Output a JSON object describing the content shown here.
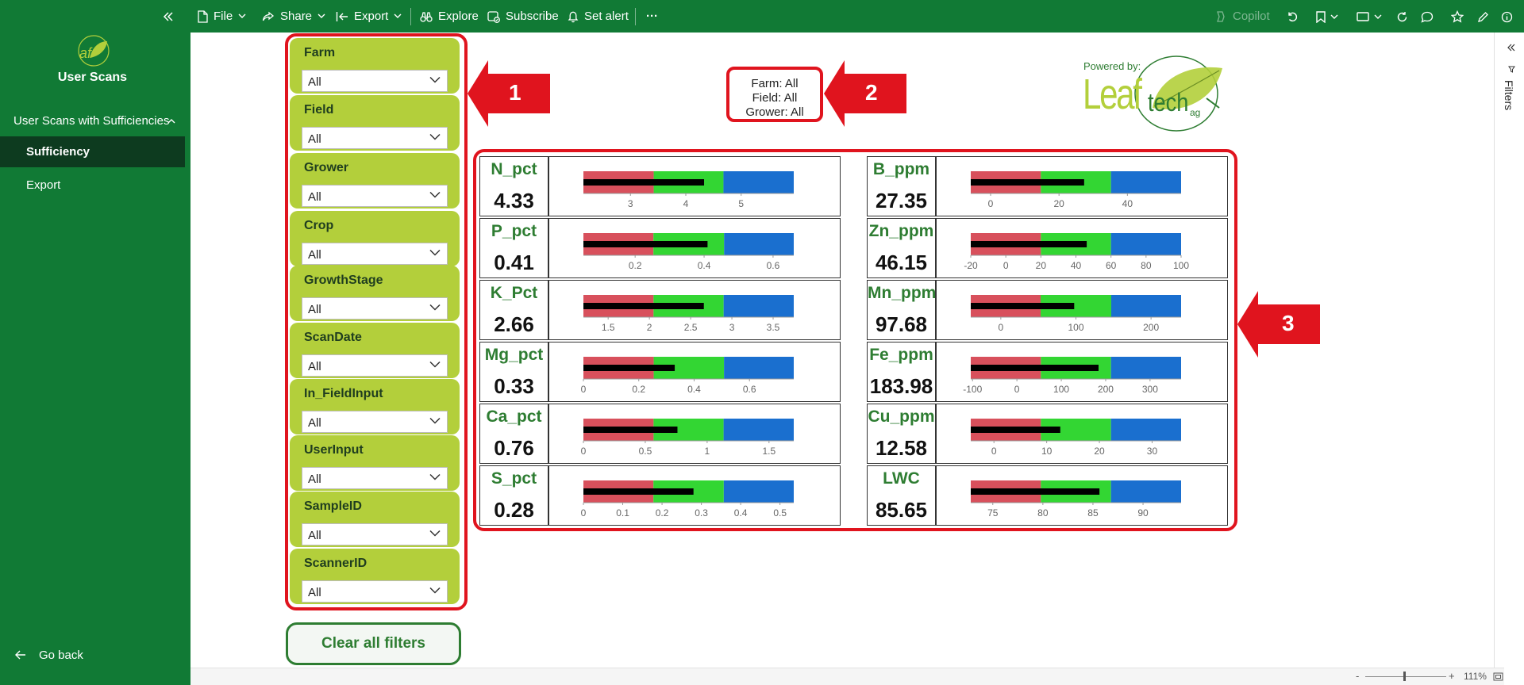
{
  "toolbar": {
    "file": "File",
    "share": "Share",
    "export": "Export",
    "explore": "Explore",
    "subscribe": "Subscribe",
    "set_alert": "Set alert",
    "more": "···",
    "copilot": "Copilot"
  },
  "nav": {
    "logo_text": "af",
    "report_title": "User Scans",
    "section": "User Scans with Sufficiencies",
    "pages": [
      "Sufficiency",
      "Export"
    ],
    "active_page": "Sufficiency",
    "go_back": "Go back"
  },
  "slicers": [
    {
      "label": "Farm",
      "value": "All"
    },
    {
      "label": "Field",
      "value": "All"
    },
    {
      "label": "Grower",
      "value": "All"
    },
    {
      "label": "Crop",
      "value": "All"
    },
    {
      "label": "GrowthStage",
      "value": "All"
    },
    {
      "label": "ScanDate",
      "value": "All"
    },
    {
      "label": "In_FieldInput",
      "value": "All"
    },
    {
      "label": "UserInput",
      "value": "All"
    },
    {
      "label": "SampleID",
      "value": "All"
    },
    {
      "label": "ScannerID",
      "value": "All"
    }
  ],
  "clear_filters": "Clear all filters",
  "summary": {
    "farm": "Farm: All",
    "field": "Field: All",
    "grower": "Grower: All"
  },
  "logo": {
    "powered_by": "Powered by:",
    "leaf": "Leaf",
    "tech": "tech",
    "ag": "ag"
  },
  "callouts": [
    "1",
    "2",
    "3"
  ],
  "filters_pane": {
    "label": "Filters"
  },
  "zoom": {
    "minus": "-",
    "plus": "+",
    "level": "111%"
  },
  "colors": {
    "brand_green": "#117a35",
    "slicer_green": "#b3cf3b",
    "low": "#d8505c",
    "sufficient": "#33d633",
    "high": "#1a6fcf",
    "measure": "#000000",
    "callout_red": "#e0141e",
    "label_green": "#2e7d32"
  },
  "chart_data": [
    {
      "type": "bullet",
      "name": "N_pct",
      "value": 4.33,
      "display": "4.33",
      "axis_min": 2.15,
      "axis_max": 5.95,
      "ranges": [
        3.42,
        4.68
      ],
      "ticks": [
        3,
        4,
        5
      ]
    },
    {
      "type": "bullet",
      "name": "P_pct",
      "value": 0.41,
      "display": "0.41",
      "axis_min": 0.05,
      "axis_max": 0.66,
      "ranges": [
        0.253,
        0.458
      ],
      "ticks": [
        0.2,
        0.4,
        0.6
      ]
    },
    {
      "type": "bullet",
      "name": "K_Pct",
      "value": 2.66,
      "display": "2.66",
      "axis_min": 1.2,
      "axis_max": 3.75,
      "ranges": [
        2.05,
        2.9
      ],
      "ticks": [
        1.5,
        2,
        2.5,
        3,
        3.5
      ]
    },
    {
      "type": "bullet",
      "name": "Mg_pct",
      "value": 0.33,
      "display": "0.33",
      "axis_min": 0.0,
      "axis_max": 0.76,
      "ranges": [
        0.254,
        0.508
      ],
      "ticks": [
        0,
        0.2,
        0.4,
        0.6
      ]
    },
    {
      "type": "bullet",
      "name": "Ca_pct",
      "value": 0.76,
      "display": "0.76",
      "axis_min": 0.0,
      "axis_max": 1.7,
      "ranges": [
        0.567,
        1.133
      ],
      "ticks": [
        0,
        0.5,
        1,
        1.5
      ]
    },
    {
      "type": "bullet",
      "name": "S_pct",
      "value": 0.28,
      "display": "0.28",
      "axis_min": 0.0,
      "axis_max": 0.535,
      "ranges": [
        0.178,
        0.357
      ],
      "ticks": [
        0,
        0.1,
        0.2,
        0.3,
        0.4,
        0.5
      ]
    },
    {
      "type": "bullet",
      "name": "B_ppm",
      "value": 27.35,
      "display": "27.35",
      "axis_min": -5.8,
      "axis_max": 55.7,
      "ranges": [
        14.7,
        35.2
      ],
      "ticks": [
        0,
        20,
        40
      ]
    },
    {
      "type": "bullet",
      "name": "Zn_ppm",
      "value": 46.15,
      "display": "46.15",
      "axis_min": -20,
      "axis_max": 100,
      "ranges": [
        20,
        60
      ],
      "ticks": [
        -20,
        0,
        20,
        40,
        60,
        80,
        100
      ]
    },
    {
      "type": "bullet",
      "name": "Mn_ppm",
      "value": 97.68,
      "display": "97.68",
      "axis_min": -40,
      "axis_max": 240,
      "ranges": [
        53,
        147
      ],
      "ticks": [
        0,
        100,
        200
      ]
    },
    {
      "type": "bullet",
      "name": "Fe_ppm",
      "value": 183.98,
      "display": "183.98",
      "axis_min": -104,
      "axis_max": 370,
      "ranges": [
        54,
        212
      ],
      "ticks": [
        -100,
        0,
        100,
        200,
        300
      ]
    },
    {
      "type": "bullet",
      "name": "Cu_ppm",
      "value": 12.58,
      "display": "12.58",
      "axis_min": -4.4,
      "axis_max": 35.5,
      "ranges": [
        8.9,
        22.2
      ],
      "ticks": [
        0,
        10,
        20,
        30
      ]
    },
    {
      "type": "bullet",
      "name": "LWC",
      "value": 85.65,
      "display": "85.65",
      "axis_min": 72.8,
      "axis_max": 93.8,
      "ranges": [
        79.8,
        86.8
      ],
      "ticks": [
        75,
        80,
        85,
        90
      ]
    }
  ]
}
